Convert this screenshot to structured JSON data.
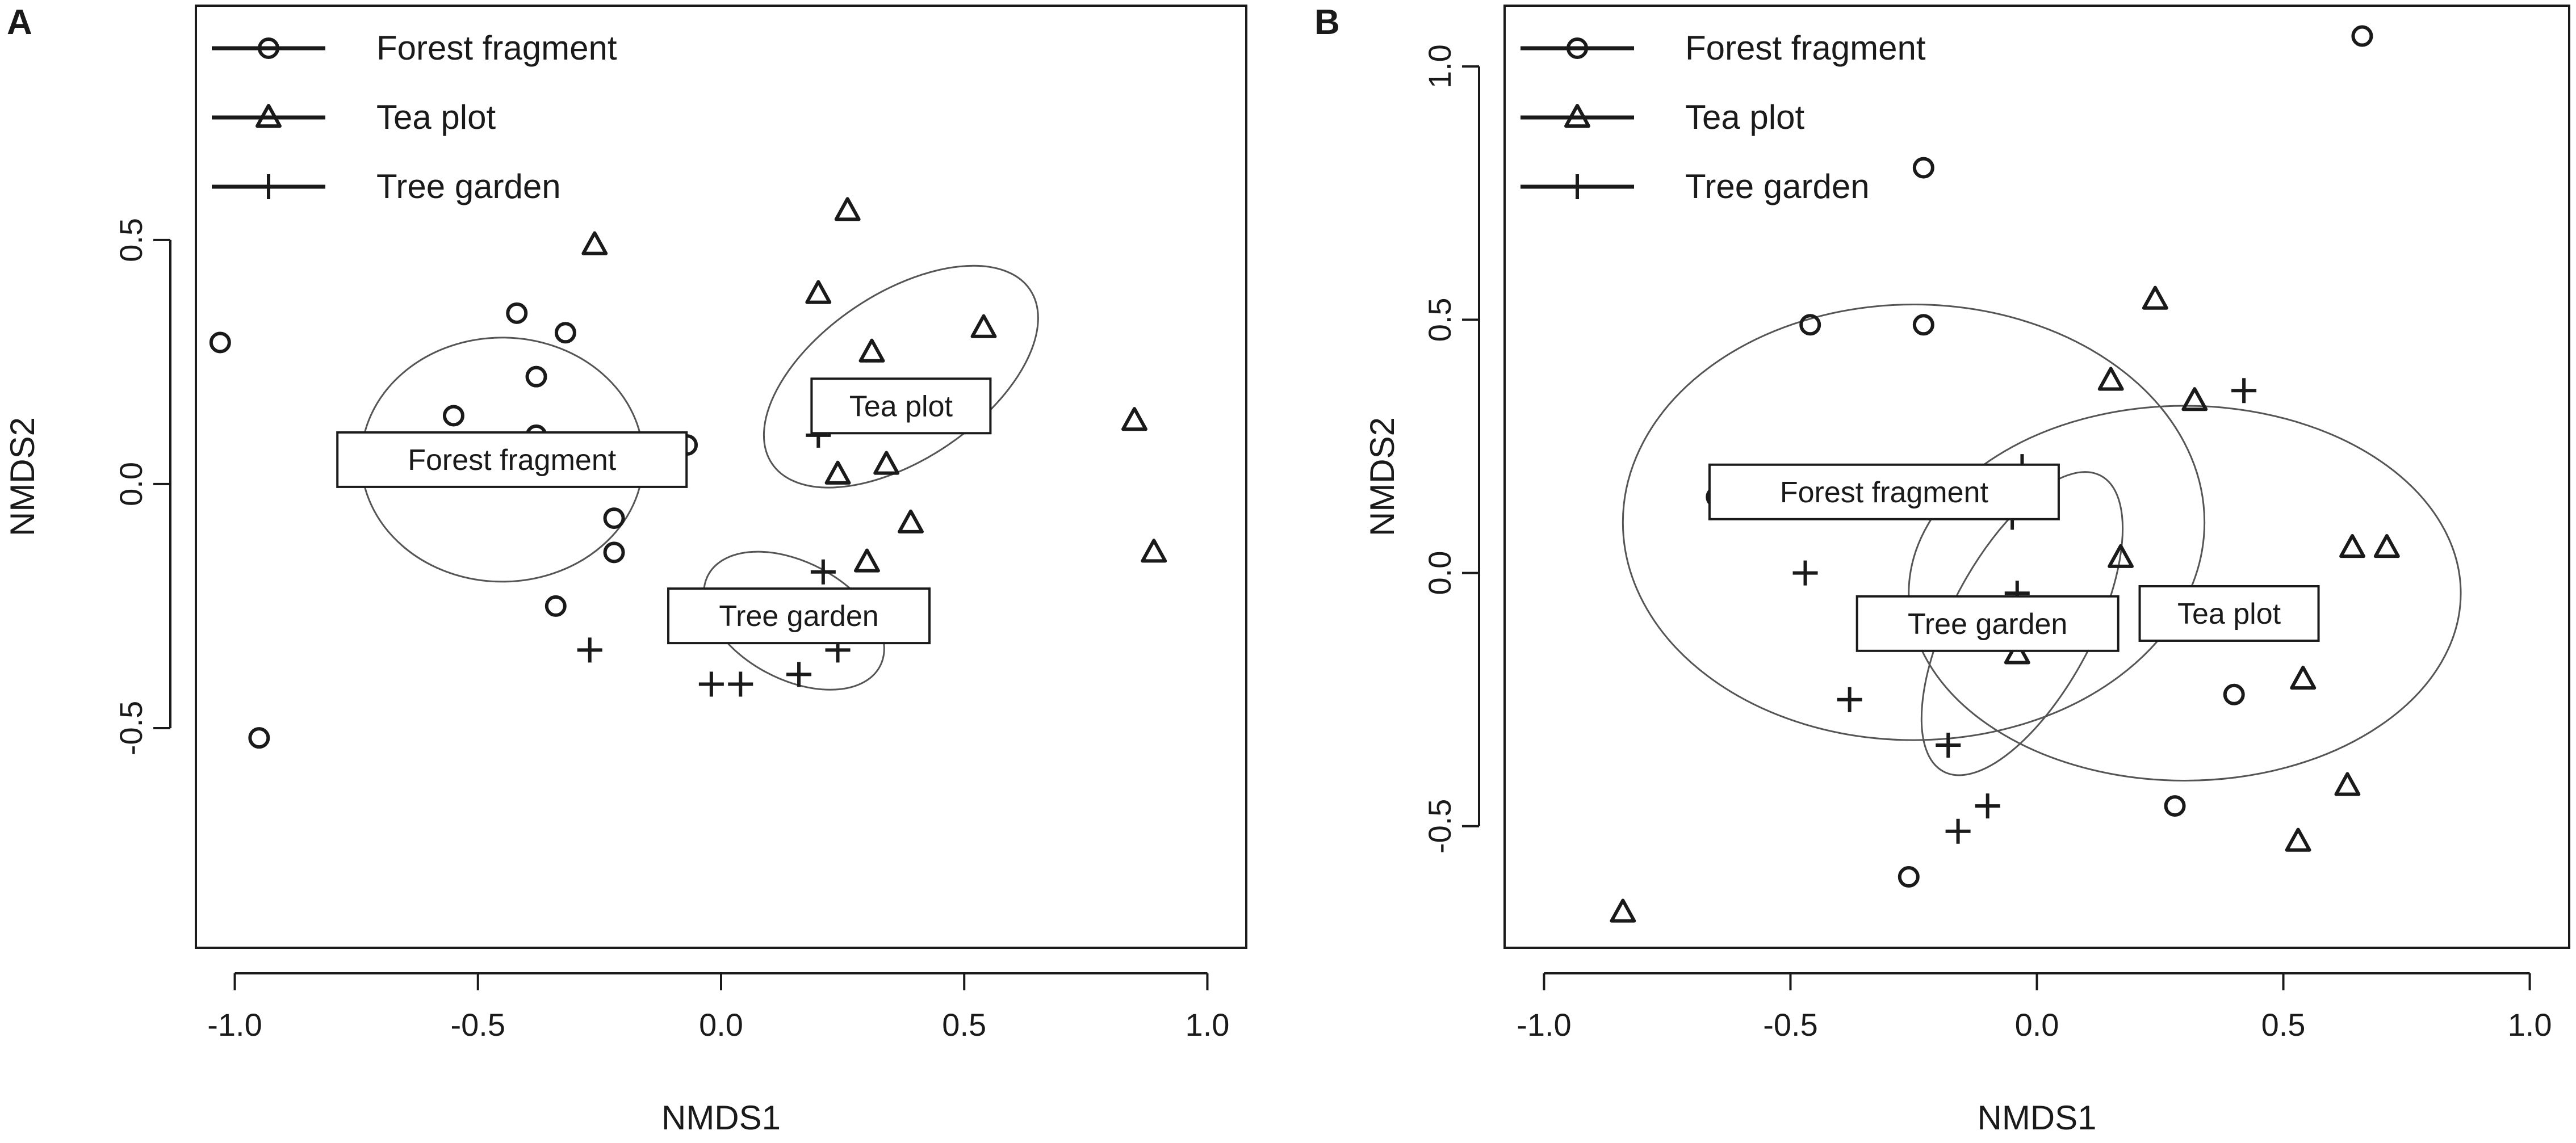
{
  "chart_data": [
    {
      "panel_label": "A",
      "type": "scatter",
      "xlabel": "NMDS1",
      "ylabel": "NMDS2",
      "xlim": [
        -1.08,
        1.08
      ],
      "ylim": [
        -0.95,
        0.98
      ],
      "x_ticks": [
        -1.0,
        -0.5,
        0.0,
        0.5,
        1.0
      ],
      "x_tick_labels": [
        "-1.0",
        "-0.5",
        "0.0",
        "0.5",
        "1.0"
      ],
      "y_ticks": [
        -0.5,
        0.0,
        0.5
      ],
      "y_tick_labels": [
        "-0.5",
        "0.0",
        "0.5"
      ],
      "legend_position": "top-left",
      "grid": false,
      "series": [
        {
          "name": "Forest fragment",
          "marker": "circle",
          "points": [
            [
              -1.03,
              0.29
            ],
            [
              -0.95,
              -0.52
            ],
            [
              -0.55,
              0.14
            ],
            [
              -0.42,
              0.35
            ],
            [
              -0.38,
              0.22
            ],
            [
              -0.38,
              0.1
            ],
            [
              -0.32,
              0.31
            ],
            [
              -0.34,
              -0.25
            ],
            [
              -0.22,
              -0.07
            ],
            [
              -0.22,
              -0.14
            ],
            [
              -0.07,
              0.08
            ]
          ]
        },
        {
          "name": "Tea plot",
          "marker": "triangle",
          "points": [
            [
              -0.26,
              0.49
            ],
            [
              0.2,
              0.39
            ],
            [
              0.26,
              0.56
            ],
            [
              0.31,
              0.27
            ],
            [
              0.54,
              0.32
            ],
            [
              0.24,
              0.02
            ],
            [
              0.34,
              0.04
            ],
            [
              0.3,
              -0.16
            ],
            [
              0.39,
              -0.08
            ],
            [
              0.85,
              0.13
            ],
            [
              0.89,
              -0.14
            ]
          ]
        },
        {
          "name": "Tree garden",
          "marker": "plus",
          "points": [
            [
              -0.27,
              -0.34
            ],
            [
              -0.02,
              -0.41
            ],
            [
              0.04,
              -0.41
            ],
            [
              0.16,
              -0.39
            ],
            [
              0.21,
              -0.18
            ],
            [
              0.24,
              -0.34
            ],
            [
              0.2,
              0.1
            ]
          ]
        }
      ],
      "ellipses": [
        {
          "name": "Forest fragment",
          "center": [
            -0.45,
            0.05
          ],
          "axes": [
            0.29,
            0.25
          ],
          "rotation_deg": 0
        },
        {
          "name": "Tea plot",
          "center": [
            0.37,
            0.22
          ],
          "axes": [
            0.32,
            0.17
          ],
          "rotation_deg": -34
        },
        {
          "name": "Tree garden",
          "center": [
            0.15,
            -0.28
          ],
          "axes": [
            0.2,
            0.12
          ],
          "rotation_deg": 28
        }
      ],
      "labels": [
        {
          "text": "Forest fragment",
          "at": [
            -0.43,
            0.05
          ]
        },
        {
          "text": "Tea plot",
          "at": [
            0.37,
            0.16
          ]
        },
        {
          "text": "Tree garden",
          "at": [
            0.16,
            -0.27
          ]
        }
      ]
    },
    {
      "panel_label": "B",
      "type": "scatter",
      "xlabel": "NMDS1",
      "ylabel": "NMDS2",
      "xlim": [
        -1.08,
        1.08
      ],
      "ylim": [
        -0.74,
        1.12
      ],
      "x_ticks": [
        -1.0,
        -0.5,
        0.0,
        0.5,
        1.0
      ],
      "x_tick_labels": [
        "-1.0",
        "-0.5",
        "0.0",
        "0.5",
        "1.0"
      ],
      "y_ticks": [
        -0.5,
        0.0,
        0.5,
        1.0
      ],
      "y_tick_labels": [
        "-0.5",
        "0.0",
        "0.5",
        "1.0"
      ],
      "legend_position": "top-left",
      "grid": false,
      "series": [
        {
          "name": "Forest fragment",
          "marker": "circle",
          "points": [
            [
              0.66,
              1.06
            ],
            [
              -0.23,
              0.8
            ],
            [
              -0.46,
              0.49
            ],
            [
              -0.23,
              0.49
            ],
            [
              -0.65,
              0.15
            ],
            [
              0.4,
              -0.24
            ],
            [
              0.28,
              -0.46
            ],
            [
              -0.26,
              -0.6
            ]
          ]
        },
        {
          "name": "Tea plot",
          "marker": "triangle",
          "points": [
            [
              0.24,
              0.54
            ],
            [
              0.15,
              0.38
            ],
            [
              0.32,
              0.34
            ],
            [
              0.17,
              0.03
            ],
            [
              -0.04,
              -0.16
            ],
            [
              0.64,
              0.05
            ],
            [
              0.71,
              0.05
            ],
            [
              0.54,
              -0.21
            ],
            [
              0.63,
              -0.42
            ],
            [
              0.53,
              -0.53
            ],
            [
              -0.84,
              -0.67
            ]
          ]
        },
        {
          "name": "Tree garden",
          "marker": "plus",
          "points": [
            [
              0.42,
              0.36
            ],
            [
              -0.47,
              0.0
            ],
            [
              -0.04,
              -0.04
            ],
            [
              -0.38,
              -0.25
            ],
            [
              -0.18,
              -0.34
            ],
            [
              -0.1,
              -0.46
            ],
            [
              -0.16,
              -0.51
            ],
            [
              -0.05,
              0.11
            ],
            [
              -0.03,
              0.21
            ]
          ]
        }
      ],
      "ellipses": [
        {
          "name": "Forest fragment",
          "center": [
            -0.25,
            0.1
          ],
          "axes": [
            0.59,
            0.43
          ],
          "rotation_deg": 0
        },
        {
          "name": "Tea plot",
          "center": [
            0.3,
            -0.04
          ],
          "axes": [
            0.56,
            0.37
          ],
          "rotation_deg": 0
        },
        {
          "name": "Tree garden",
          "center": [
            -0.03,
            -0.1
          ],
          "axes": [
            0.34,
            0.14
          ],
          "rotation_deg": -62
        }
      ],
      "labels": [
        {
          "text": "Forest fragment",
          "at": [
            -0.31,
            0.16
          ]
        },
        {
          "text": "Tree garden",
          "at": [
            -0.1,
            -0.1
          ]
        },
        {
          "text": "Tea plot",
          "at": [
            0.39,
            -0.08
          ]
        }
      ]
    }
  ]
}
